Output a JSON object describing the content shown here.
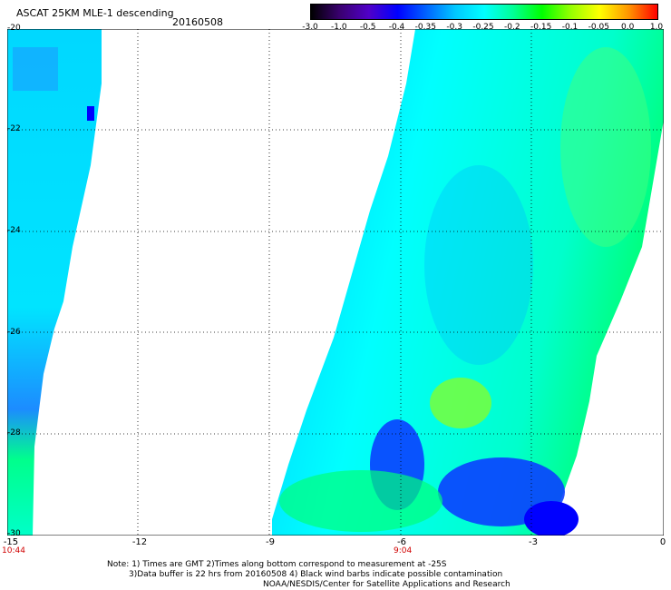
{
  "header": {
    "title": "ASCAT 25KM MLE-1 descending",
    "date": "20160508"
  },
  "colorbar": {
    "labels": [
      "-3.0",
      "-1.0",
      "-0.5",
      "-0.4",
      "-0.35",
      "-0.3",
      "-0.25",
      "-0.2",
      "-0.15",
      "-0.1",
      "-0.05",
      "0.0",
      "1.0"
    ],
    "stops": [
      "#000000",
      "#3a0070",
      "#5000c8",
      "#0000ff",
      "#0064ff",
      "#00c8ff",
      "#00ffff",
      "#00ff96",
      "#00ff00",
      "#96ff00",
      "#ffff00",
      "#ff9600",
      "#ff0000"
    ]
  },
  "axes": {
    "y_labels": [
      "-20",
      "-22",
      "-24",
      "-26",
      "-28",
      "-30"
    ],
    "x_labels": [
      "-15",
      "-12",
      "-9",
      "-6",
      "-3",
      "0"
    ],
    "x_range": [
      -15,
      0
    ],
    "y_range": [
      -20,
      -30
    ]
  },
  "times": [
    "10:44",
    "9:04"
  ],
  "notes": [
    "Note: 1) Times are GMT 2)Times along bottom correspond to measurement at -25S",
    "3)Data buffer is 22 hrs from 20160508 4) Black wind barbs indicate possible contamination",
    "NOAA/NESDIS/Center for Satellite Applications and Research"
  ]
}
